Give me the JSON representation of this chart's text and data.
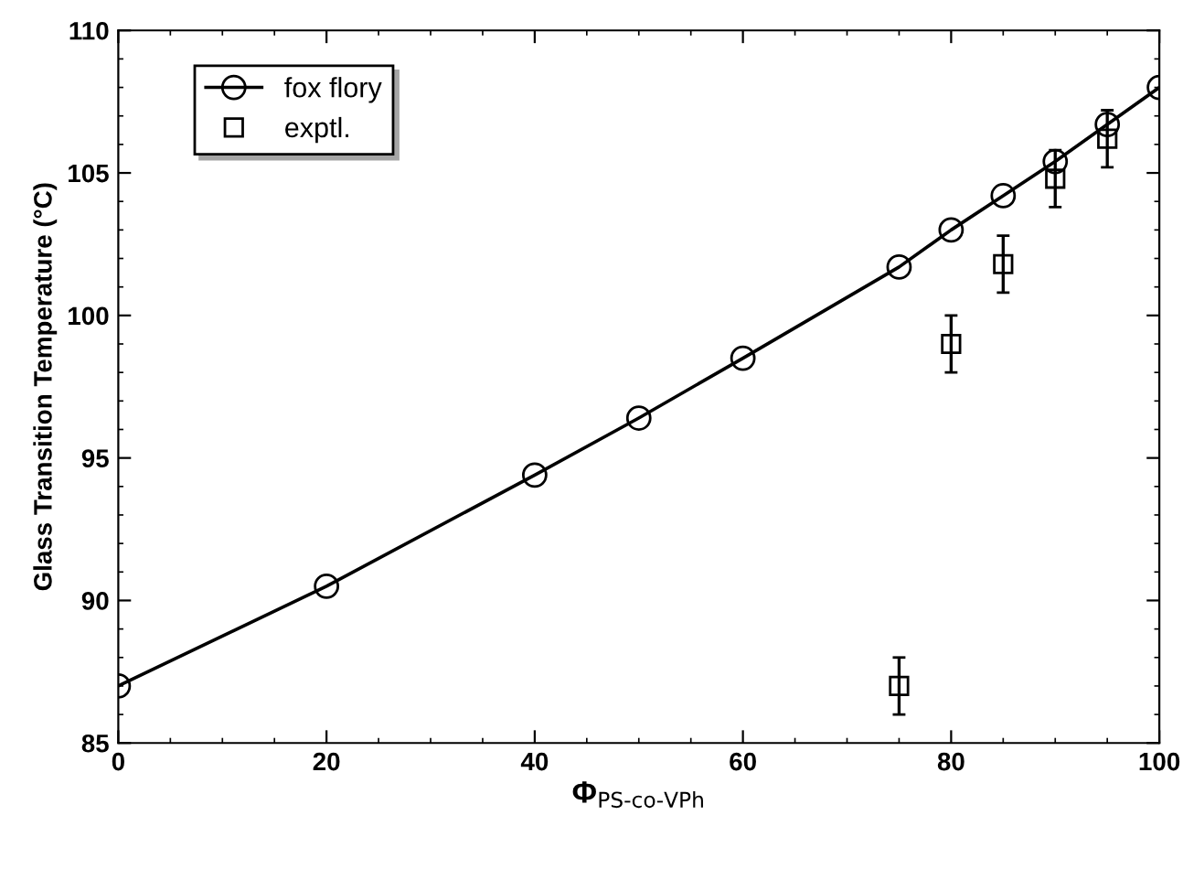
{
  "chart_data": {
    "type": "line",
    "xlabel": "Φ$_{PS-co-VPh}$",
    "ylabel": "Glass Transition Temperature (°C)",
    "xlim": [
      0,
      100
    ],
    "ylim": [
      85,
      110
    ],
    "xticks": [
      0,
      20,
      40,
      60,
      80,
      100
    ],
    "yticks": [
      85,
      90,
      95,
      100,
      105,
      110
    ],
    "grid": false,
    "legend": "top left",
    "series": [
      {
        "name": "fox flory",
        "marker": "circle",
        "line_style": "solid",
        "color": "#000000",
        "x": [
          0,
          20,
          40,
          50,
          60,
          75,
          80,
          85,
          90,
          95,
          100
        ],
        "values": [
          87,
          90.5,
          94.4,
          96.4,
          98.5,
          101.7,
          103,
          104.2,
          105.4,
          106.7,
          108
        ]
      },
      {
        "name": "exptl.",
        "type": "scatter",
        "marker": "square",
        "color": "#000000",
        "x": [
          75,
          80,
          85,
          90,
          95
        ],
        "values": [
          87.0,
          99.0,
          101.8,
          104.8,
          106.2
        ],
        "errors": [
          1,
          1,
          1,
          1,
          1
        ]
      }
    ]
  }
}
